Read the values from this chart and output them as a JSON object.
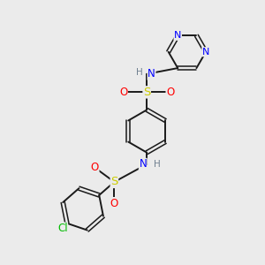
{
  "background_color": "#ebebeb",
  "bond_color": "#1a1a1a",
  "colors": {
    "N": "#0000ff",
    "S": "#cccc00",
    "O": "#ff0000",
    "Cl": "#00bb00",
    "H": "#708090",
    "C": "#1a1a1a"
  },
  "figsize": [
    3.0,
    3.0
  ],
  "dpi": 100
}
